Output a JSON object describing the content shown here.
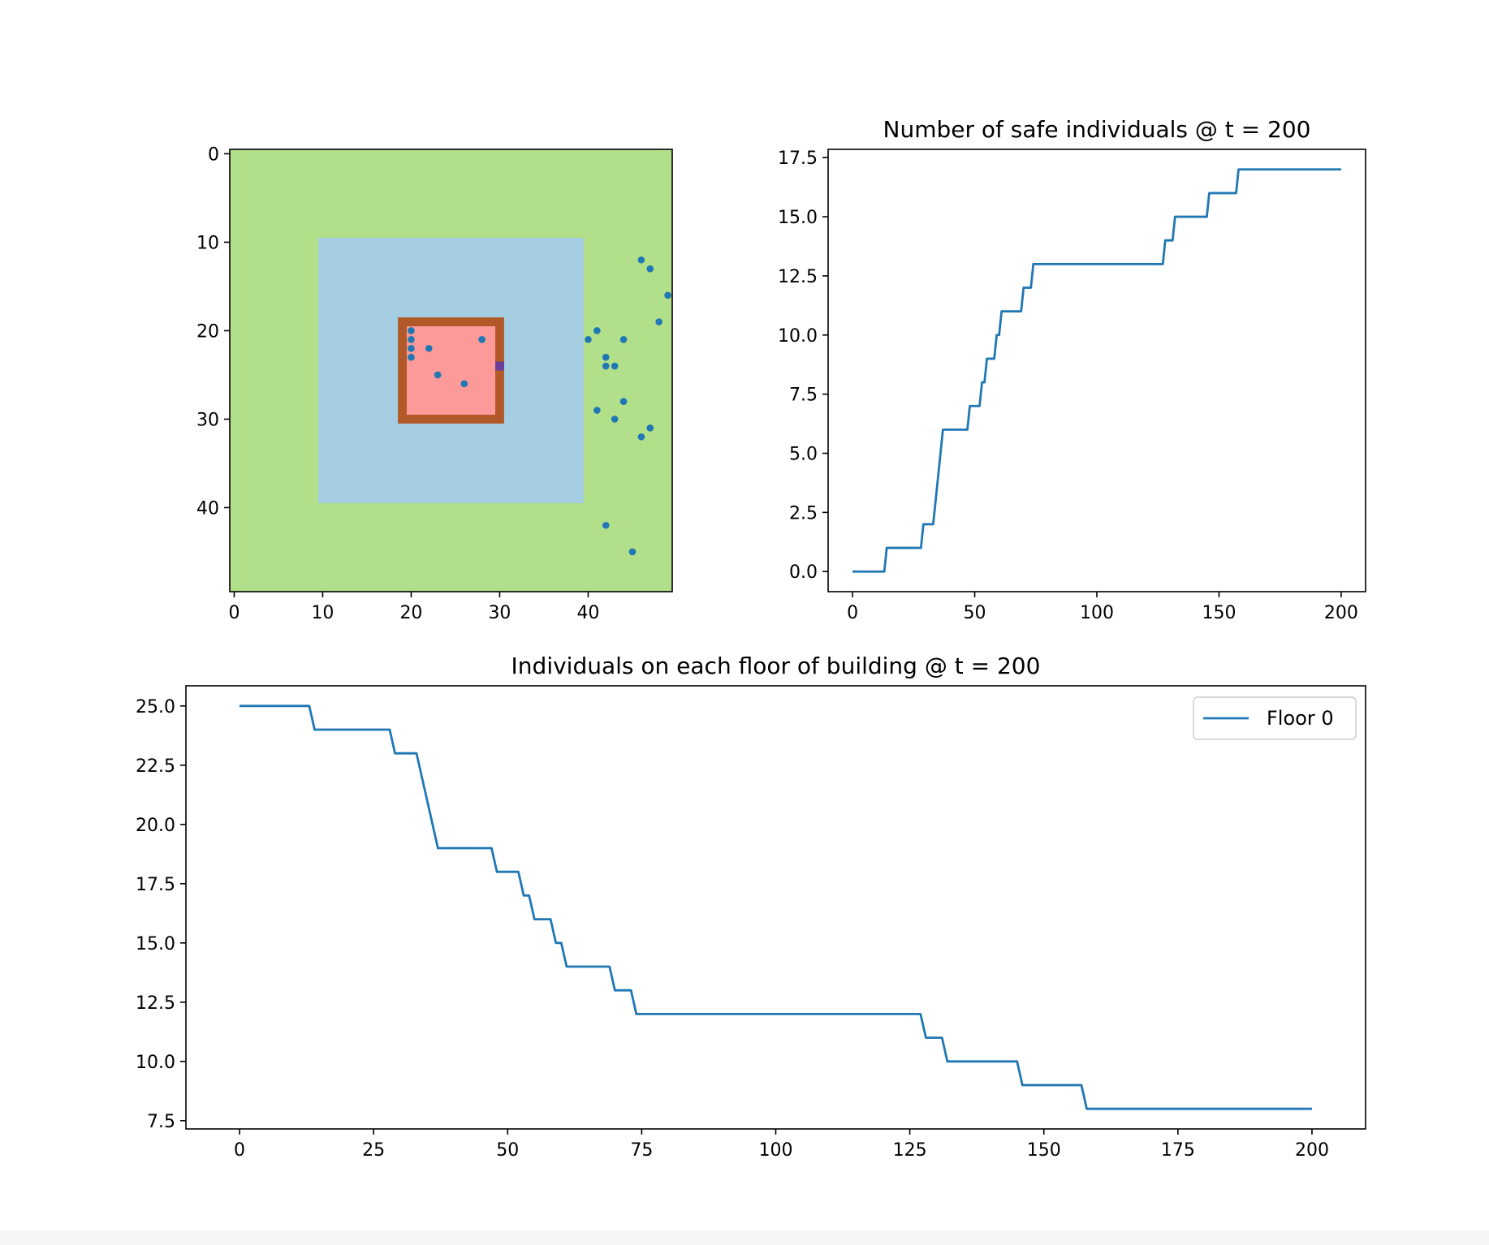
{
  "chart_data": [
    {
      "type": "heatmap",
      "title": "",
      "xlabel": "",
      "ylabel": "",
      "xlim": [
        -0.5,
        49.5
      ],
      "ylim": [
        49.5,
        -0.5
      ],
      "x_ticks": [
        0,
        10,
        20,
        30,
        40
      ],
      "y_ticks": [
        0,
        10,
        20,
        30,
        40
      ],
      "grid": false,
      "regions": [
        {
          "name": "outer",
          "x0": -0.5,
          "x1": 49.5,
          "y0": -0.5,
          "y1": 49.5,
          "color": "#b2df8a"
        },
        {
          "name": "inner",
          "x0": 9.5,
          "x1": 39.5,
          "y0": 9.5,
          "y1": 39.5,
          "color": "#a6cee3"
        },
        {
          "name": "wall",
          "x0": 18.5,
          "x1": 30.5,
          "y0": 18.5,
          "y1": 30.5,
          "color": "#b15928"
        },
        {
          "name": "floor",
          "x0": 19.5,
          "x1": 29.5,
          "y0": 19.5,
          "y1": 29.5,
          "color": "#fb9a99"
        },
        {
          "name": "exit",
          "x0": 29.5,
          "x1": 30.5,
          "y0": 23.5,
          "y1": 24.5,
          "color": "#6a3d9a"
        }
      ],
      "points_color": "#1f77b4",
      "points": [
        [
          20,
          20
        ],
        [
          20,
          21
        ],
        [
          20,
          22
        ],
        [
          20,
          23
        ],
        [
          22,
          22
        ],
        [
          23,
          25
        ],
        [
          26,
          26
        ],
        [
          28,
          21
        ],
        [
          40,
          21
        ],
        [
          41,
          20
        ],
        [
          41,
          29
        ],
        [
          42,
          23
        ],
        [
          42,
          24
        ],
        [
          43,
          24
        ],
        [
          43,
          30
        ],
        [
          44,
          21
        ],
        [
          44,
          28
        ],
        [
          46,
          12
        ],
        [
          47,
          13
        ],
        [
          49,
          16
        ],
        [
          48,
          19
        ],
        [
          46,
          32
        ],
        [
          47,
          31
        ],
        [
          42,
          42
        ],
        [
          45,
          45
        ]
      ]
    },
    {
      "type": "line",
      "title": "Number of safe individuals @ t = 200",
      "xlabel": "",
      "ylabel": "",
      "xlim": [
        -10,
        210
      ],
      "ylim": [
        -0.85,
        17.85
      ],
      "x_ticks": [
        0,
        50,
        100,
        150,
        200
      ],
      "y_ticks": [
        0.0,
        2.5,
        5.0,
        7.5,
        10.0,
        12.5,
        15.0,
        17.5
      ],
      "y_tick_labels": [
        "0.0",
        "2.5",
        "5.0",
        "7.5",
        "10.0",
        "12.5",
        "15.0",
        "17.5"
      ],
      "grid": false,
      "series": [
        {
          "color": "#1f77b4",
          "x": [
            0,
            13,
            14,
            28,
            29,
            33,
            37,
            47,
            48,
            52,
            53,
            54,
            55,
            58,
            59,
            60,
            61,
            69,
            70,
            73,
            74,
            127,
            128,
            131,
            132,
            145,
            146,
            157,
            158,
            200
          ],
          "y": [
            0,
            0,
            1,
            1,
            2,
            2,
            6,
            6,
            7,
            7,
            8,
            8,
            9,
            9,
            10,
            10,
            11,
            11,
            12,
            12,
            13,
            13,
            14,
            14,
            15,
            15,
            16,
            16,
            17,
            17
          ]
        }
      ]
    },
    {
      "type": "line",
      "title": "Individuals on each floor of building @ t = 200",
      "xlabel": "",
      "ylabel": "",
      "xlim": [
        -10,
        210
      ],
      "ylim": [
        7.15,
        25.85
      ],
      "x_ticks": [
        0,
        25,
        50,
        75,
        100,
        125,
        150,
        175,
        200
      ],
      "y_ticks": [
        7.5,
        10.0,
        12.5,
        15.0,
        17.5,
        20.0,
        22.5,
        25.0
      ],
      "y_tick_labels": [
        "7.5",
        "10.0",
        "12.5",
        "15.0",
        "17.5",
        "20.0",
        "22.5",
        "25.0"
      ],
      "grid": false,
      "legend_position": "upper right",
      "series": [
        {
          "name": "Floor 0",
          "color": "#1f77b4",
          "x": [
            0,
            13,
            14,
            28,
            29,
            33,
            37,
            47,
            48,
            52,
            53,
            54,
            55,
            58,
            59,
            60,
            61,
            69,
            70,
            73,
            74,
            127,
            128,
            131,
            132,
            145,
            146,
            157,
            158,
            200
          ],
          "y": [
            25,
            25,
            24,
            24,
            23,
            23,
            19,
            19,
            18,
            18,
            17,
            17,
            16,
            16,
            15,
            15,
            14,
            14,
            13,
            13,
            12,
            12,
            11,
            11,
            10,
            10,
            9,
            9,
            8,
            8
          ]
        }
      ]
    }
  ]
}
